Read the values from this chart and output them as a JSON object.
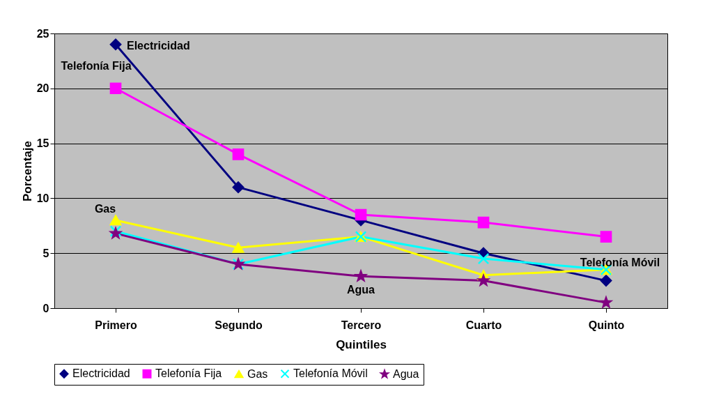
{
  "chart_data": {
    "type": "line",
    "xlabel": "Quintiles",
    "ylabel": "Porcentaje",
    "categories": [
      "Primero",
      "Segundo",
      "Tercero",
      "Cuarto",
      "Quinto"
    ],
    "series": [
      {
        "name": "Electricidad",
        "color": "#000080",
        "marker": "diamond",
        "values": [
          24,
          11,
          8,
          5,
          2.5
        ]
      },
      {
        "name": "Telefonía Fija",
        "color": "#ff00ff",
        "marker": "square",
        "values": [
          20,
          14,
          8.5,
          7.8,
          6.5
        ]
      },
      {
        "name": "Gas",
        "color": "#ffff00",
        "marker": "triangle",
        "values": [
          8,
          5.5,
          6.5,
          3,
          3.5
        ]
      },
      {
        "name": "Telefonía Móvil",
        "color": "#00ffff",
        "marker": "cross",
        "values": [
          7,
          4,
          6.5,
          4.5,
          3.5
        ]
      },
      {
        "name": "Agua",
        "color": "#800080",
        "marker": "star",
        "values": [
          6.8,
          4,
          2.9,
          2.5,
          0.5
        ]
      }
    ],
    "ylim": [
      0,
      25
    ],
    "yticks": [
      0,
      5,
      10,
      15,
      20,
      25
    ],
    "grid": "y",
    "legend": "bottom",
    "line_style": "solid"
  }
}
